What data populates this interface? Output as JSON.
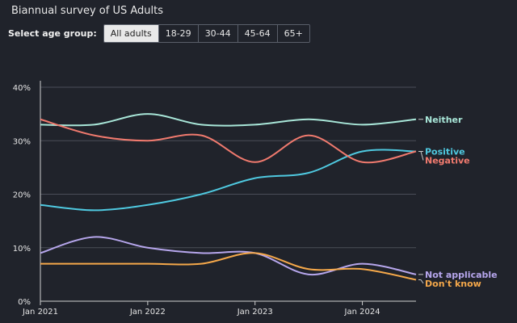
{
  "header": {
    "subtitle": "Biannual survey of US Adults"
  },
  "age_selector": {
    "label": "Select age group:",
    "options": [
      "All adults",
      "18-29",
      "30-44",
      "45-64",
      "65+"
    ],
    "selected": "All adults"
  },
  "chart_data": {
    "type": "line",
    "title": "",
    "subtitle": "Biannual survey of US Adults",
    "xlabel": "",
    "ylabel": "",
    "x": [
      "2021-01",
      "2021-07",
      "2022-01",
      "2022-07",
      "2023-01",
      "2023-07",
      "2024-01",
      "2024-07"
    ],
    "x_ticks": [
      "Jan 2021",
      "Jan 2022",
      "Jan 2023",
      "Jan 2024"
    ],
    "y_ticks": [
      "0%",
      "10%",
      "20%",
      "30%",
      "40%"
    ],
    "ylim": [
      0,
      40
    ],
    "grid": true,
    "legend": "direct labels at right",
    "series": [
      {
        "name": "Neither",
        "color": "#a8e6d8",
        "values": [
          33,
          33,
          35,
          33,
          33,
          34,
          33,
          34
        ]
      },
      {
        "name": "Positive",
        "color": "#4fc9e0",
        "values": [
          18,
          17,
          18,
          20,
          23,
          24,
          28,
          28
        ]
      },
      {
        "name": "Negative",
        "color": "#f07a6e",
        "values": [
          34,
          31,
          30,
          31,
          26,
          31,
          26,
          28
        ]
      },
      {
        "name": "Not applicable",
        "color": "#b6a6ec",
        "values": [
          9,
          12,
          10,
          9,
          9,
          5,
          7,
          5
        ]
      },
      {
        "name": "Don't know",
        "color": "#f5a84a",
        "values": [
          7,
          7,
          7,
          7,
          9,
          6,
          6,
          4
        ]
      }
    ]
  }
}
